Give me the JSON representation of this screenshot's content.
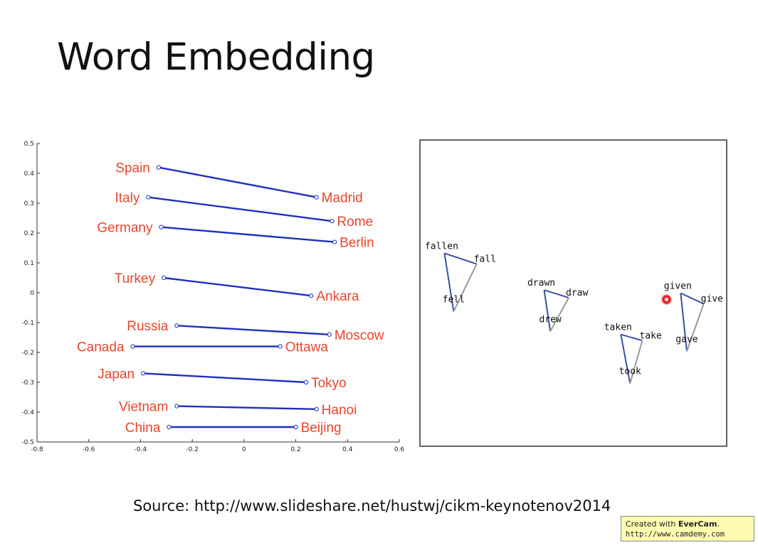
{
  "slide": {
    "title": "Word Embedding",
    "source": "Source: http://www.slideshare.net/hustwj/cikm-keynotenov2014",
    "watermark": {
      "prefix": "Created with ",
      "brand": "EverCam",
      "suffix": ".",
      "url": "http://www.camdemy.com"
    }
  },
  "colors": {
    "country_label": "#e8452c",
    "line": "#1f2fbf",
    "triangle_dark": "#3a50a0",
    "triangle_light": "#9a9a9a"
  },
  "chart_data": [
    {
      "type": "line",
      "xlim": [
        -0.8,
        0.6
      ],
      "ylim": [
        -0.5,
        0.5
      ],
      "x_ticks": [
        -0.8,
        -0.6,
        -0.4,
        -0.2,
        0,
        0.2,
        0.4,
        0.6
      ],
      "x_tick_labels": [
        "-0.8",
        "-0.6",
        "-0.4",
        "-0.2",
        "0",
        "0.2",
        "0.4",
        "0.6"
      ],
      "y_ticks": [
        0.5,
        0.4,
        0.3,
        0.2,
        0.1,
        0,
        -0.1,
        -0.2,
        -0.3,
        -0.4,
        -0.5
      ],
      "y_tick_labels": [
        "0.5",
        "0.4",
        "0.3",
        "0.2",
        "0.1",
        "0",
        "-0.1",
        "-0.2",
        "-0.3",
        "-0.4",
        "-0.5"
      ],
      "pairs": [
        {
          "country": "Spain",
          "capital": "Madrid",
          "country_xy": [
            -0.33,
            0.42
          ],
          "capital_xy": [
            0.28,
            0.32
          ]
        },
        {
          "country": "Italy",
          "capital": "Rome",
          "country_xy": [
            -0.37,
            0.32
          ],
          "capital_xy": [
            0.34,
            0.24
          ]
        },
        {
          "country": "Germany",
          "capital": "Berlin",
          "country_xy": [
            -0.32,
            0.22
          ],
          "capital_xy": [
            0.35,
            0.17
          ]
        },
        {
          "country": "Turkey",
          "capital": "Ankara",
          "country_xy": [
            -0.31,
            0.05
          ],
          "capital_xy": [
            0.26,
            -0.01
          ]
        },
        {
          "country": "Russia",
          "capital": "Moscow",
          "country_xy": [
            -0.26,
            -0.11
          ],
          "capital_xy": [
            0.33,
            -0.14
          ]
        },
        {
          "country": "Canada",
          "capital": "Ottawa",
          "country_xy": [
            -0.43,
            -0.18
          ],
          "capital_xy": [
            0.14,
            -0.18
          ]
        },
        {
          "country": "Japan",
          "capital": "Tokyo",
          "country_xy": [
            -0.39,
            -0.27
          ],
          "capital_xy": [
            0.24,
            -0.3
          ]
        },
        {
          "country": "Vietnam",
          "capital": "Hanoi",
          "country_xy": [
            -0.26,
            -0.38
          ],
          "capital_xy": [
            0.28,
            -0.39
          ]
        },
        {
          "country": "China",
          "capital": "Beijing",
          "country_xy": [
            -0.29,
            -0.45
          ],
          "capital_xy": [
            0.2,
            -0.45
          ]
        }
      ]
    },
    {
      "type": "line",
      "triangles": [
        {
          "past_participle": "fallen",
          "base": "fall",
          "past": "fell",
          "past_participle_xy": [
            0.08,
            0.63
          ],
          "base_xy": [
            0.185,
            0.595
          ],
          "past_xy": [
            0.11,
            0.44
          ]
        },
        {
          "past_participle": "drawn",
          "base": "draw",
          "past": "drew",
          "past_participle_xy": [
            0.405,
            0.51
          ],
          "base_xy": [
            0.485,
            0.485
          ],
          "past_xy": [
            0.425,
            0.375
          ]
        },
        {
          "past_participle": "taken",
          "base": "take",
          "past": "took",
          "past_participle_xy": [
            0.655,
            0.365
          ],
          "base_xy": [
            0.725,
            0.345
          ],
          "past_xy": [
            0.685,
            0.205
          ]
        },
        {
          "past_participle": "given",
          "base": "give",
          "past": "gave",
          "past_participle_xy": [
            0.85,
            0.5
          ],
          "base_xy": [
            0.925,
            0.465
          ],
          "past_xy": [
            0.87,
            0.31
          ]
        }
      ]
    }
  ]
}
